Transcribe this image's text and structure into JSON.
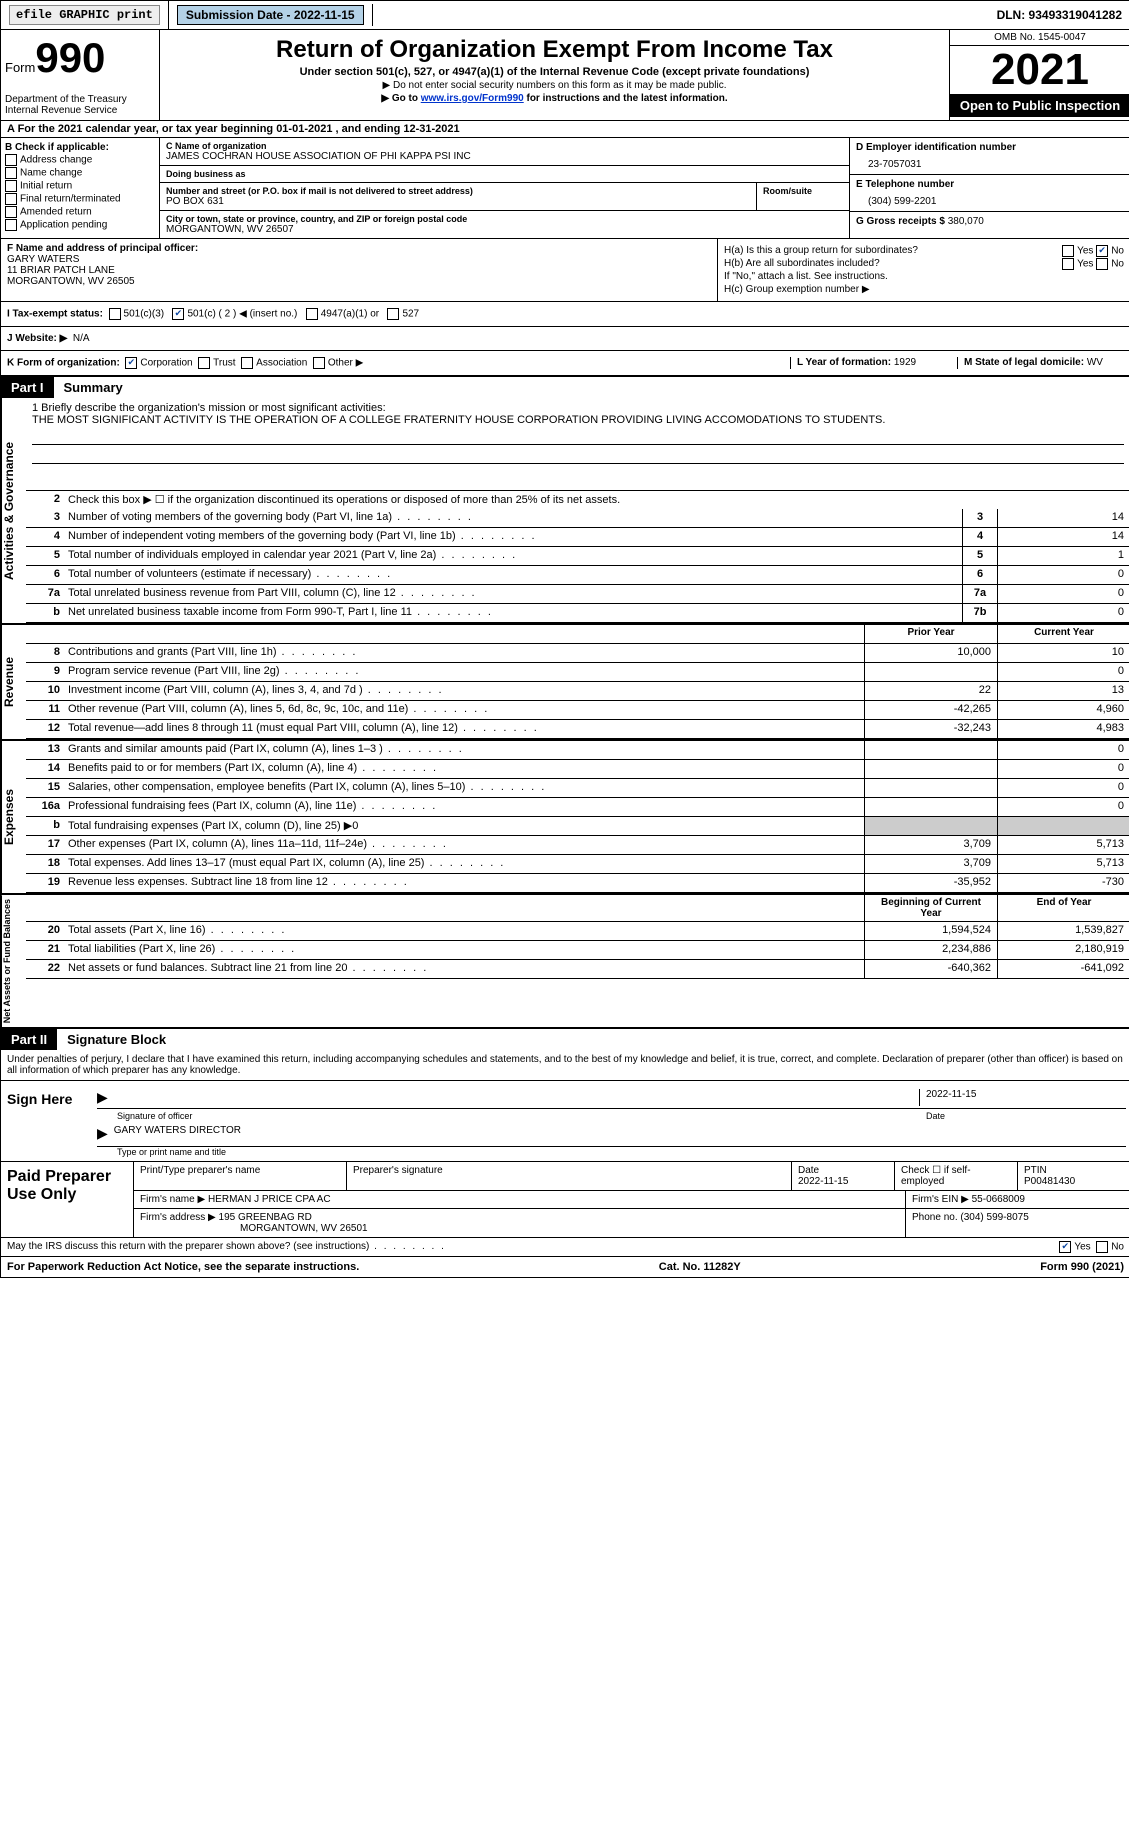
{
  "topbar": {
    "efile": "efile GRAPHIC print",
    "sub_label": "Submission Date - 2022-11-15",
    "dln": "DLN: 93493319041282"
  },
  "header": {
    "form_label": "Form",
    "form_num": "990",
    "dept": "Department of the Treasury\nInternal Revenue Service",
    "title": "Return of Organization Exempt From Income Tax",
    "sub": "Under section 501(c), 527, or 4947(a)(1) of the Internal Revenue Code (except private foundations)",
    "note1": "▶ Do not enter social security numbers on this form as it may be made public.",
    "note2_pre": "▶ Go to ",
    "note2_link": "www.irs.gov/Form990",
    "note2_post": " for instructions and the latest information.",
    "omb": "OMB No. 1545-0047",
    "year": "2021",
    "open": "Open to Public Inspection"
  },
  "row_a": "A For the 2021 calendar year, or tax year beginning 01-01-2021    , and ending 12-31-2021",
  "col_b": {
    "header": "B Check if applicable:",
    "opts": [
      "Address change",
      "Name change",
      "Initial return",
      "Final return/terminated",
      "Amended return",
      "Application pending"
    ]
  },
  "col_c": {
    "name_label": "C Name of organization",
    "name": "JAMES COCHRAN HOUSE ASSOCIATION OF PHI KAPPA PSI INC",
    "dba_label": "Doing business as",
    "dba": "",
    "street_label": "Number and street (or P.O. box if mail is not delivered to street address)",
    "street": "PO BOX 631",
    "room_label": "Room/suite",
    "city_label": "City or town, state or province, country, and ZIP or foreign postal code",
    "city": "MORGANTOWN, WV  26507"
  },
  "col_d": {
    "ein_label": "D Employer identification number",
    "ein": "23-7057031",
    "phone_label": "E Telephone number",
    "phone": "(304) 599-2201",
    "gross_label": "G Gross receipts $",
    "gross": "380,070"
  },
  "col_f": {
    "label": "F Name and address of principal officer:",
    "name": "GARY WATERS",
    "street": "11 BRIAR PATCH LANE",
    "city": "MORGANTOWN, WV  26505"
  },
  "col_h": {
    "ha_label": "H(a)  Is this a group return for subordinates?",
    "hb_label": "H(b)  Are all subordinates included?",
    "hb_note": "If \"No,\" attach a list. See instructions.",
    "hc_label": "H(c)  Group exemption number ▶"
  },
  "row_i": {
    "label": "I  Tax-exempt status:",
    "opts": [
      "501(c)(3)",
      "501(c) ( 2 ) ◀ (insert no.)",
      "4947(a)(1) or",
      "527"
    ]
  },
  "row_j": {
    "label": "J  Website: ▶",
    "value": "N/A"
  },
  "row_k": {
    "label": "K Form of organization:",
    "opts": [
      "Corporation",
      "Trust",
      "Association",
      "Other ▶"
    ],
    "l_label": "L Year of formation:",
    "l_val": "1929",
    "m_label": "M State of legal domicile:",
    "m_val": "WV"
  },
  "part1": {
    "label": "Part I",
    "title": "Summary"
  },
  "mission": {
    "label": "1  Briefly describe the organization's mission or most significant activities:",
    "text": "THE MOST SIGNIFICANT ACTIVITY IS THE OPERATION OF A COLLEGE FRATERNITY HOUSE CORPORATION PROVIDING LIVING ACCOMODATIONS TO STUDENTS."
  },
  "activities": {
    "vtab": "Activities & Governance",
    "r2": "Check this box ▶ ☐ if the organization discontinued its operations or disposed of more than 25% of its net assets.",
    "rows": [
      {
        "n": "3",
        "d": "Number of voting members of the governing body (Part VI, line 1a)",
        "b": "3",
        "v": "14"
      },
      {
        "n": "4",
        "d": "Number of independent voting members of the governing body (Part VI, line 1b)",
        "b": "4",
        "v": "14"
      },
      {
        "n": "5",
        "d": "Total number of individuals employed in calendar year 2021 (Part V, line 2a)",
        "b": "5",
        "v": "1"
      },
      {
        "n": "6",
        "d": "Total number of volunteers (estimate if necessary)",
        "b": "6",
        "v": "0"
      },
      {
        "n": "7a",
        "d": "Total unrelated business revenue from Part VIII, column (C), line 12",
        "b": "7a",
        "v": "0"
      },
      {
        "n": "b",
        "d": "Net unrelated business taxable income from Form 990-T, Part I, line 11",
        "b": "7b",
        "v": "0"
      }
    ]
  },
  "revenue": {
    "vtab": "Revenue",
    "head_prior": "Prior Year",
    "head_curr": "Current Year",
    "rows": [
      {
        "n": "8",
        "d": "Contributions and grants (Part VIII, line 1h)",
        "p": "10,000",
        "c": "10"
      },
      {
        "n": "9",
        "d": "Program service revenue (Part VIII, line 2g)",
        "p": "",
        "c": "0"
      },
      {
        "n": "10",
        "d": "Investment income (Part VIII, column (A), lines 3, 4, and 7d )",
        "p": "22",
        "c": "13"
      },
      {
        "n": "11",
        "d": "Other revenue (Part VIII, column (A), lines 5, 6d, 8c, 9c, 10c, and 11e)",
        "p": "-42,265",
        "c": "4,960"
      },
      {
        "n": "12",
        "d": "Total revenue—add lines 8 through 11 (must equal Part VIII, column (A), line 12)",
        "p": "-32,243",
        "c": "4,983"
      }
    ]
  },
  "expenses": {
    "vtab": "Expenses",
    "rows": [
      {
        "n": "13",
        "d": "Grants and similar amounts paid (Part IX, column (A), lines 1–3 )",
        "p": "",
        "c": "0"
      },
      {
        "n": "14",
        "d": "Benefits paid to or for members (Part IX, column (A), line 4)",
        "p": "",
        "c": "0"
      },
      {
        "n": "15",
        "d": "Salaries, other compensation, employee benefits (Part IX, column (A), lines 5–10)",
        "p": "",
        "c": "0"
      },
      {
        "n": "16a",
        "d": "Professional fundraising fees (Part IX, column (A), line 11e)",
        "p": "",
        "c": "0"
      },
      {
        "n": "b",
        "d": "Total fundraising expenses (Part IX, column (D), line 25) ▶0",
        "p": "shade",
        "c": "shade"
      },
      {
        "n": "17",
        "d": "Other expenses (Part IX, column (A), lines 11a–11d, 11f–24e)",
        "p": "3,709",
        "c": "5,713"
      },
      {
        "n": "18",
        "d": "Total expenses. Add lines 13–17 (must equal Part IX, column (A), line 25)",
        "p": "3,709",
        "c": "5,713"
      },
      {
        "n": "19",
        "d": "Revenue less expenses. Subtract line 18 from line 12",
        "p": "-35,952",
        "c": "-730"
      }
    ]
  },
  "netassets": {
    "vtab": "Net Assets or Fund Balances",
    "head_begin": "Beginning of Current Year",
    "head_end": "End of Year",
    "rows": [
      {
        "n": "20",
        "d": "Total assets (Part X, line 16)",
        "p": "1,594,524",
        "c": "1,539,827"
      },
      {
        "n": "21",
        "d": "Total liabilities (Part X, line 26)",
        "p": "2,234,886",
        "c": "2,180,919"
      },
      {
        "n": "22",
        "d": "Net assets or fund balances. Subtract line 21 from line 20",
        "p": "-640,362",
        "c": "-641,092"
      }
    ]
  },
  "part2": {
    "label": "Part II",
    "title": "Signature Block"
  },
  "sig": {
    "perjury": "Under penalties of perjury, I declare that I have examined this return, including accompanying schedules and statements, and to the best of my knowledge and belief, it is true, correct, and complete. Declaration of preparer (other than officer) is based on all information of which preparer has any knowledge.",
    "sign_here": "Sign Here",
    "sig_officer": "Signature of officer",
    "date": "2022-11-15",
    "date_label": "Date",
    "name": "GARY WATERS  DIRECTOR",
    "name_label": "Type or print name and title"
  },
  "prep": {
    "label": "Paid Preparer Use Only",
    "h1": "Print/Type preparer's name",
    "h2": "Preparer's signature",
    "h3_label": "Date",
    "h3": "2022-11-15",
    "h4_label": "Check ☐ if self-employed",
    "h5_label": "PTIN",
    "h5": "P00481430",
    "firm_label": "Firm's name     ▶",
    "firm": "HERMAN J PRICE CPA AC",
    "ein_label": "Firm's EIN ▶",
    "ein": "55-0668009",
    "addr_label": "Firm's address ▶",
    "addr": "195 GREENBAG RD",
    "addr2": "MORGANTOWN, WV  26501",
    "phone_label": "Phone no.",
    "phone": "(304) 599-8075"
  },
  "discuss": {
    "q": "May the IRS discuss this return with the preparer shown above? (see instructions)",
    "yes": "Yes",
    "no": "No"
  },
  "footer": {
    "left": "For Paperwork Reduction Act Notice, see the separate instructions.",
    "mid": "Cat. No. 11282Y",
    "right": "Form 990 (2021)"
  }
}
